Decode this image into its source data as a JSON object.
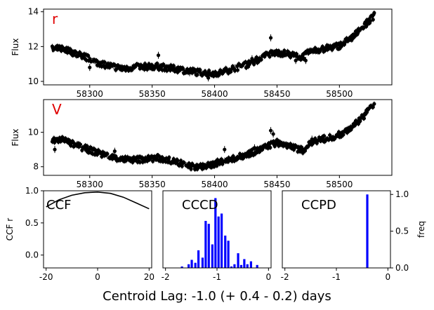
{
  "chart_data": [
    {
      "type": "scatter",
      "id": "r",
      "band_label": "r",
      "ylabel": "Flux",
      "xlim": [
        58263,
        58542
      ],
      "ylim": [
        9.8,
        14.15
      ],
      "xticks": [
        58300,
        58350,
        58400,
        58450,
        58500
      ],
      "yticks": [
        10,
        12,
        14
      ],
      "band_color": "#e00000",
      "curve": [
        [
          58270,
          11.85
        ],
        [
          58278,
          11.9
        ],
        [
          58285,
          11.7
        ],
        [
          58295,
          11.45
        ],
        [
          58305,
          11.1
        ],
        [
          58315,
          10.9
        ],
        [
          58325,
          10.75
        ],
        [
          58335,
          10.8
        ],
        [
          58345,
          10.85
        ],
        [
          58355,
          10.85
        ],
        [
          58365,
          10.75
        ],
        [
          58375,
          10.65
        ],
        [
          58385,
          10.55
        ],
        [
          58395,
          10.45
        ],
        [
          58405,
          10.5
        ],
        [
          58415,
          10.75
        ],
        [
          58425,
          10.95
        ],
        [
          58435,
          11.25
        ],
        [
          58443,
          11.55
        ],
        [
          58450,
          11.65
        ],
        [
          58458,
          11.6
        ],
        [
          58465,
          11.45
        ],
        [
          58470,
          11.4
        ],
        [
          58478,
          11.75
        ],
        [
          58490,
          11.9
        ],
        [
          58500,
          12.05
        ],
        [
          58510,
          12.5
        ],
        [
          58520,
          13.2
        ],
        [
          58528,
          13.8
        ]
      ],
      "outliers": [
        [
          58300,
          10.8
        ],
        [
          58355,
          11.5
        ],
        [
          58380,
          10.5
        ],
        [
          58445,
          12.5
        ],
        [
          58465,
          11.2
        ],
        [
          58473,
          11.2
        ],
        [
          58395,
          10.2
        ],
        [
          58430,
          11.3
        ]
      ]
    },
    {
      "type": "scatter",
      "id": "V",
      "band_label": "V",
      "ylabel": "Flux",
      "xlim": [
        58263,
        58542
      ],
      "ylim": [
        7.5,
        11.9
      ],
      "xticks": [
        58300,
        58350,
        58400,
        58450,
        58500
      ],
      "yticks": [
        8,
        10
      ],
      "band_color": "#e00000",
      "curve": [
        [
          58270,
          9.5
        ],
        [
          58278,
          9.6
        ],
        [
          58285,
          9.35
        ],
        [
          58295,
          9.1
        ],
        [
          58305,
          8.85
        ],
        [
          58315,
          8.6
        ],
        [
          58325,
          8.45
        ],
        [
          58335,
          8.4
        ],
        [
          58345,
          8.45
        ],
        [
          58355,
          8.5
        ],
        [
          58365,
          8.35
        ],
        [
          58375,
          8.15
        ],
        [
          58385,
          7.95
        ],
        [
          58395,
          8.05
        ],
        [
          58405,
          8.3
        ],
        [
          58415,
          8.45
        ],
        [
          58425,
          8.7
        ],
        [
          58435,
          8.95
        ],
        [
          58443,
          9.2
        ],
        [
          58450,
          9.4
        ],
        [
          58458,
          9.25
        ],
        [
          58466,
          9.05
        ],
        [
          58472,
          8.95
        ],
        [
          58478,
          9.45
        ],
        [
          58490,
          9.65
        ],
        [
          58500,
          9.85
        ],
        [
          58510,
          10.3
        ],
        [
          58520,
          11.0
        ],
        [
          58528,
          11.6
        ]
      ],
      "outliers": [
        [
          58272,
          9.0
        ],
        [
          58290,
          9.3
        ],
        [
          58320,
          8.9
        ],
        [
          58408,
          9.0
        ],
        [
          58432,
          9.1
        ],
        [
          58445,
          10.1
        ],
        [
          58447,
          9.9
        ],
        [
          58478,
          9.6
        ],
        [
          58470,
          9.0
        ]
      ]
    },
    {
      "type": "line",
      "id": "ccf",
      "title": "CCF",
      "ylabel": "CCF r",
      "xlim": [
        -21,
        21
      ],
      "ylim": [
        -0.2,
        1.0
      ],
      "xticks": [
        -20,
        0,
        20
      ],
      "yticks": [
        0.0,
        0.5,
        1.0
      ],
      "x": [
        -20,
        -15,
        -10,
        -5,
        0,
        5,
        10,
        15,
        20
      ],
      "y": [
        0.75,
        0.86,
        0.93,
        0.97,
        0.98,
        0.96,
        0.9,
        0.81,
        0.72
      ]
    },
    {
      "type": "bar",
      "id": "cccd",
      "title": "CCCD",
      "xlim": [
        -2.05,
        0.05
      ],
      "xticks": [
        -2,
        -1,
        0
      ],
      "x": [
        -1.68,
        -1.55,
        -1.49,
        -1.42,
        -1.36,
        -1.28,
        -1.22,
        -1.16,
        -1.09,
        -1.03,
        -0.97,
        -0.91,
        -0.84,
        -0.78,
        -0.72,
        -0.66,
        -0.59,
        -0.53,
        -0.47,
        -0.41,
        -0.34,
        -0.22
      ],
      "values": [
        0.02,
        0.05,
        0.11,
        0.07,
        0.24,
        0.14,
        0.64,
        0.6,
        0.32,
        0.95,
        0.7,
        0.74,
        0.44,
        0.37,
        0.02,
        0.05,
        0.2,
        0.04,
        0.12,
        0.05,
        0.09,
        0.04
      ]
    },
    {
      "type": "bar",
      "id": "ccpd",
      "title": "CCPD",
      "ylabel": "freq",
      "xlim": [
        -2.05,
        0.05
      ],
      "ylim": [
        0,
        1.05
      ],
      "xticks": [
        -2,
        -1,
        0
      ],
      "yticks": [
        0.0,
        0.5,
        1.0
      ],
      "x": [
        -0.4
      ],
      "values": [
        1.0
      ]
    }
  ],
  "footer": "Centroid Lag:  -1.0 (+  0.4 -  0.2) days"
}
